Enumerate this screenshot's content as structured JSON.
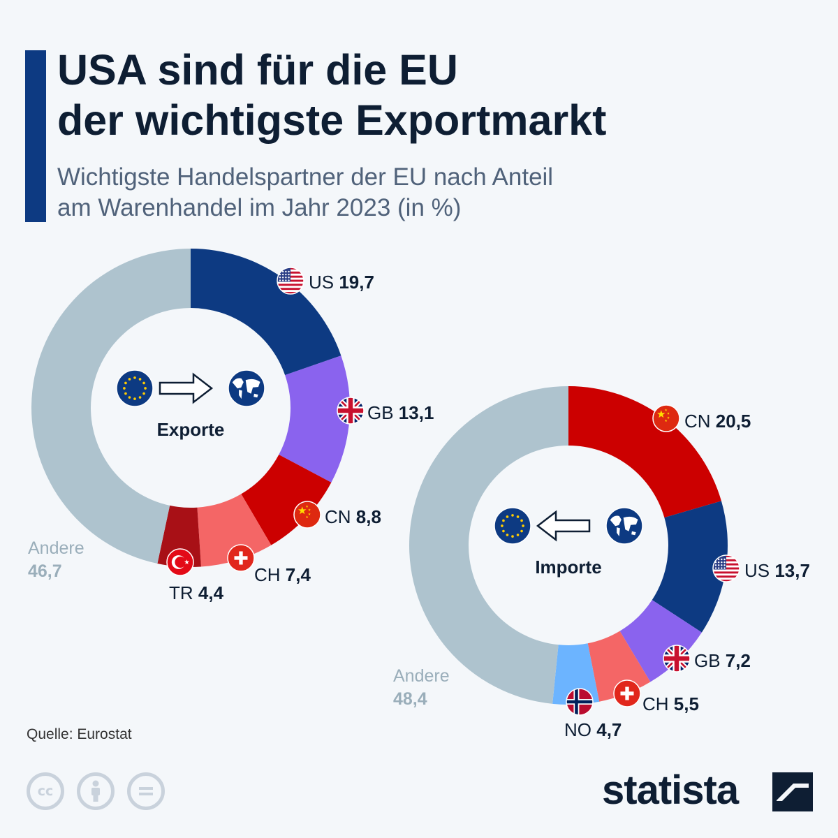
{
  "header": {
    "title_line1": "USA sind für die EU",
    "title_line2": "der wichtigste Exportmarkt",
    "subtitle_line1": "Wichtigste Handelspartner der EU nach Anteil",
    "subtitle_line2": "am Warenhandel im Jahr 2023 (in %)"
  },
  "colors": {
    "navy": "#0d3a82",
    "purple": "#8a63ee",
    "red": "#cc0000",
    "salmon": "#f46666",
    "darkred": "#a81016",
    "lightblue": "#6cb4ff",
    "grey": "#aec3ce"
  },
  "chart_data": [
    {
      "type": "pie",
      "variant": "donut",
      "center_label": "Exporte",
      "center_icons": [
        "eu-flag-icon",
        "arrow-right-icon",
        "world-icon"
      ],
      "slices": [
        {
          "code": "US",
          "value": 19.7,
          "value_label": "19,7",
          "color": "#0d3a82",
          "flag": "us-flag-icon"
        },
        {
          "code": "GB",
          "value": 13.1,
          "value_label": "13,1",
          "color": "#8a63ee",
          "flag": "gb-flag-icon"
        },
        {
          "code": "CN",
          "value": 8.8,
          "value_label": "8,8",
          "color": "#cc0000",
          "flag": "cn-flag-icon"
        },
        {
          "code": "CH",
          "value": 7.4,
          "value_label": "7,4",
          "color": "#f46666",
          "flag": "ch-flag-icon"
        },
        {
          "code": "TR",
          "value": 4.4,
          "value_label": "4,4",
          "color": "#a81016",
          "flag": "tr-flag-icon"
        },
        {
          "code": "Andere",
          "value": 46.7,
          "value_label": "46,7",
          "color": "#aec3ce",
          "flag": null
        }
      ]
    },
    {
      "type": "pie",
      "variant": "donut",
      "center_label": "Importe",
      "center_icons": [
        "eu-flag-icon",
        "arrow-left-icon",
        "world-icon"
      ],
      "slices": [
        {
          "code": "CN",
          "value": 20.5,
          "value_label": "20,5",
          "color": "#cc0000",
          "flag": "cn-flag-icon"
        },
        {
          "code": "US",
          "value": 13.7,
          "value_label": "13,7",
          "color": "#0d3a82",
          "flag": "us-flag-icon"
        },
        {
          "code": "GB",
          "value": 7.2,
          "value_label": "7,2",
          "color": "#8a63ee",
          "flag": "gb-flag-icon"
        },
        {
          "code": "CH",
          "value": 5.5,
          "value_label": "5,5",
          "color": "#f46666",
          "flag": "ch-flag-icon"
        },
        {
          "code": "NO",
          "value": 4.7,
          "value_label": "4,7",
          "color": "#6cb4ff",
          "flag": "no-flag-icon"
        },
        {
          "code": "Andere",
          "value": 48.4,
          "value_label": "48,4",
          "color": "#aec3ce",
          "flag": null
        }
      ]
    }
  ],
  "footer": {
    "source": "Quelle: Eurostat",
    "brand": "statista",
    "license_icons": [
      "cc-icon",
      "by-icon",
      "nd-icon"
    ]
  }
}
